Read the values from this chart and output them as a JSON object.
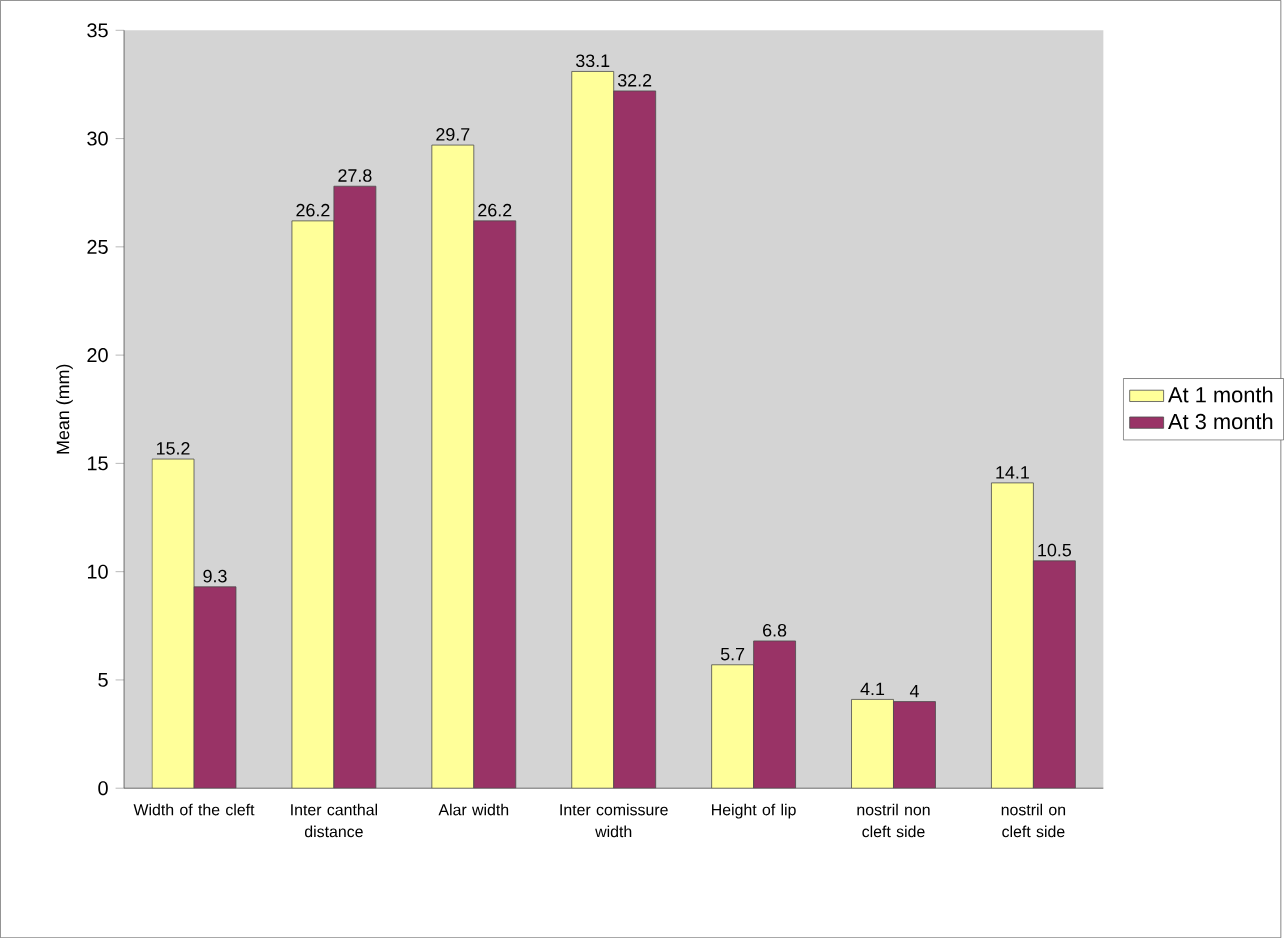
{
  "chart_data": {
    "type": "bar",
    "ylabel": "Mean (mm)",
    "categories": [
      "Width of the cleft",
      "Inter canthal distance",
      "Alar width",
      "Inter comissure width",
      "Height of lip",
      "nostril non cleft side",
      "nostril on cleft side"
    ],
    "series": [
      {
        "name": "At 1 month",
        "color": "#ffff99",
        "values": [
          15.2,
          26.2,
          29.7,
          33.1,
          5.7,
          4.1,
          14.1
        ]
      },
      {
        "name": "At 3 month",
        "color": "#993366",
        "values": [
          9.3,
          27.8,
          26.2,
          32.2,
          6.8,
          4,
          10.5
        ]
      }
    ],
    "ylim": [
      0,
      35
    ],
    "yticks": [
      0,
      5,
      10,
      15,
      20,
      25,
      30,
      35
    ],
    "data_labels": true,
    "legend": "right",
    "grid": false
  }
}
